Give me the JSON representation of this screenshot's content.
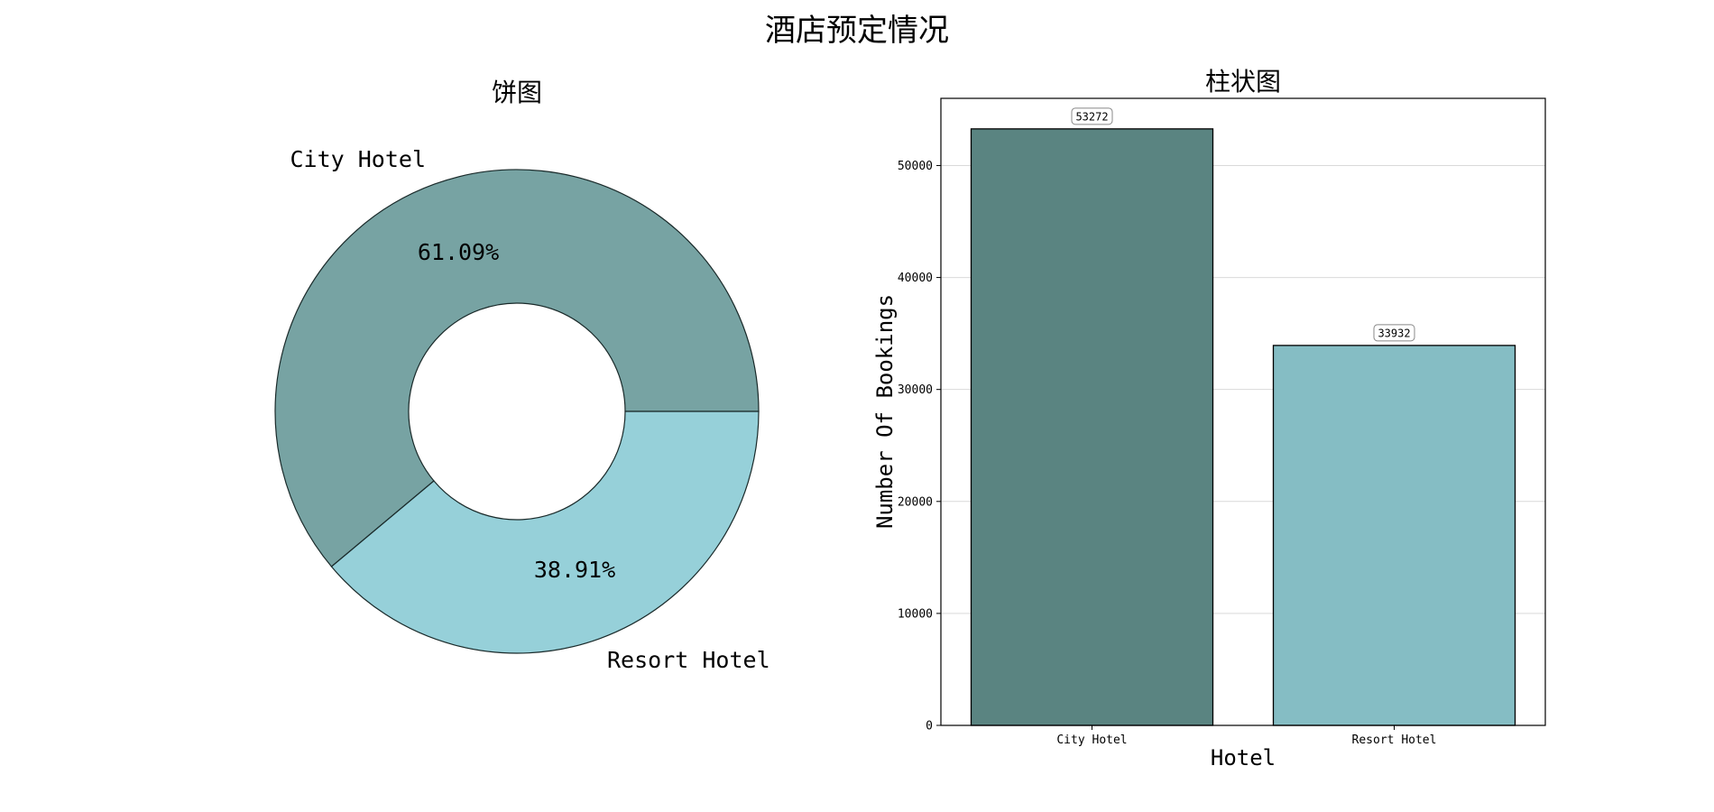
{
  "suptitle": "酒店预定情况",
  "chart_data": [
    {
      "type": "pie",
      "title": "饼图",
      "categories": [
        "City Hotel",
        "Resort Hotel"
      ],
      "values": [
        61.09,
        38.91
      ],
      "value_labels": [
        "61.09%",
        "38.91%"
      ],
      "donut": true,
      "colors": [
        "#77a3a3",
        "#96d0d9"
      ],
      "edge_color": "#1a2a2a"
    },
    {
      "type": "bar",
      "title": "柱状图",
      "categories": [
        "City Hotel",
        "Resort Hotel"
      ],
      "values": [
        53272,
        33932
      ],
      "value_labels": [
        "53272",
        "33932"
      ],
      "xlabel": "Hotel",
      "ylabel": "Number Of Bookings",
      "ylim": [
        0,
        56000
      ],
      "yticks": [
        0,
        10000,
        20000,
        30000,
        40000,
        50000
      ],
      "ytick_labels": [
        "0",
        "10000",
        "20000",
        "30000",
        "40000",
        "50000"
      ],
      "grid": true,
      "colors": [
        "#5a8481",
        "#85bdc4"
      ]
    }
  ]
}
